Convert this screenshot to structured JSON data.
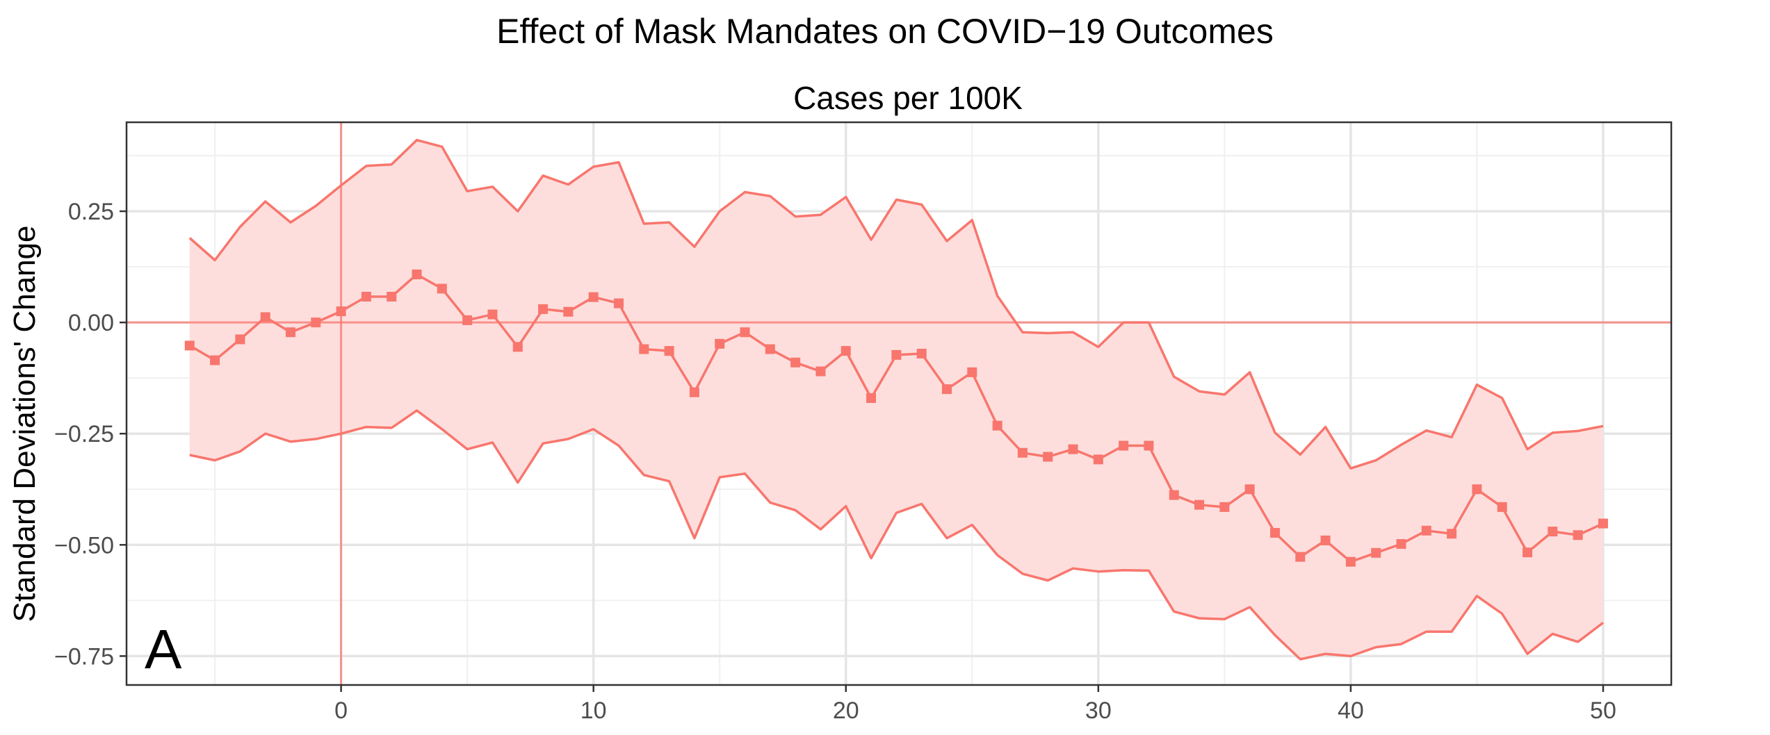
{
  "figure": {
    "title": "Effect of Mask Mandates on COVID−19 Outcomes",
    "panel_letter": "A"
  },
  "colors": {
    "series": "#F8766D",
    "ribbon": "#FDDEDD",
    "grid_major": "#e5e5e5",
    "grid_minor": "#f0f0f0",
    "panel_border": "#333333",
    "tick_text": "#4d4d4d"
  },
  "chart_data": {
    "type": "line",
    "title": "Cases per 100K",
    "xlabel": "",
    "ylabel": "Standard Deviations' Change",
    "xlim": [
      -8.5,
      52.7
    ],
    "ylim": [
      -0.815,
      0.45
    ],
    "x_ticks": [
      0,
      10,
      20,
      30,
      40,
      50
    ],
    "x_tick_labels": [
      "0",
      "10",
      "20",
      "30",
      "40",
      "50"
    ],
    "y_ticks": [
      -0.75,
      -0.5,
      -0.25,
      0,
      0.25
    ],
    "y_tick_labels": [
      "−0.75",
      "−0.50",
      "−0.25",
      "0.00",
      "0.25"
    ],
    "reference_lines": {
      "x": 0,
      "y": 0
    },
    "grid": true,
    "x": [
      -6,
      -5,
      -4,
      -3,
      -2,
      -1,
      0,
      1,
      2,
      3,
      4,
      5,
      6,
      7,
      8,
      9,
      10,
      11,
      12,
      13,
      14,
      15,
      16,
      17,
      18,
      19,
      20,
      21,
      22,
      23,
      24,
      25,
      26,
      27,
      28,
      29,
      30,
      31,
      32,
      33,
      34,
      35,
      36,
      37,
      38,
      39,
      40,
      41,
      42,
      43,
      44,
      45,
      46,
      47,
      48,
      49,
      50
    ],
    "series": [
      {
        "estimate": [
          -0.052,
          -0.085,
          -0.038,
          0.012,
          -0.022,
          0.0,
          0.025,
          0.058,
          0.058,
          0.108,
          0.076,
          0.005,
          0.018,
          -0.055,
          0.03,
          0.024,
          0.057,
          0.043,
          -0.06,
          -0.064,
          -0.157,
          -0.048,
          -0.022,
          -0.06,
          -0.09,
          -0.11,
          -0.064,
          -0.17,
          -0.073,
          -0.07,
          -0.15,
          -0.112,
          -0.232,
          -0.293,
          -0.302,
          -0.285,
          -0.308,
          -0.277,
          -0.277,
          -0.388,
          -0.41,
          -0.415,
          -0.375,
          -0.473,
          -0.527,
          -0.49,
          -0.538,
          -0.518,
          -0.498,
          -0.468,
          -0.475,
          -0.375,
          -0.415,
          -0.517,
          -0.47,
          -0.478,
          -0.452
        ],
        "upper": [
          0.19,
          0.14,
          0.215,
          0.272,
          0.225,
          0.262,
          0.308,
          0.352,
          0.355,
          0.41,
          0.395,
          0.295,
          0.305,
          0.25,
          0.33,
          0.31,
          0.35,
          0.36,
          0.222,
          0.225,
          0.17,
          0.25,
          0.293,
          0.284,
          0.238,
          0.242,
          0.282,
          0.186,
          0.276,
          0.265,
          0.183,
          0.23,
          0.06,
          -0.022,
          -0.024,
          -0.022,
          -0.055,
          0.0,
          0.0,
          -0.122,
          -0.155,
          -0.162,
          -0.112,
          -0.248,
          -0.297,
          -0.235,
          -0.328,
          -0.31,
          -0.275,
          -0.243,
          -0.258,
          -0.14,
          -0.17,
          -0.285,
          -0.248,
          -0.244,
          -0.233
        ],
        "lower": [
          -0.298,
          -0.31,
          -0.29,
          -0.25,
          -0.268,
          -0.262,
          -0.25,
          -0.235,
          -0.237,
          -0.198,
          -0.24,
          -0.285,
          -0.27,
          -0.36,
          -0.272,
          -0.262,
          -0.24,
          -0.277,
          -0.343,
          -0.357,
          -0.485,
          -0.348,
          -0.34,
          -0.405,
          -0.422,
          -0.465,
          -0.413,
          -0.53,
          -0.428,
          -0.408,
          -0.485,
          -0.455,
          -0.523,
          -0.565,
          -0.58,
          -0.553,
          -0.56,
          -0.557,
          -0.558,
          -0.65,
          -0.665,
          -0.667,
          -0.64,
          -0.703,
          -0.757,
          -0.745,
          -0.75,
          -0.73,
          -0.723,
          -0.695,
          -0.695,
          -0.615,
          -0.655,
          -0.745,
          -0.7,
          -0.718,
          -0.675
        ]
      }
    ]
  }
}
